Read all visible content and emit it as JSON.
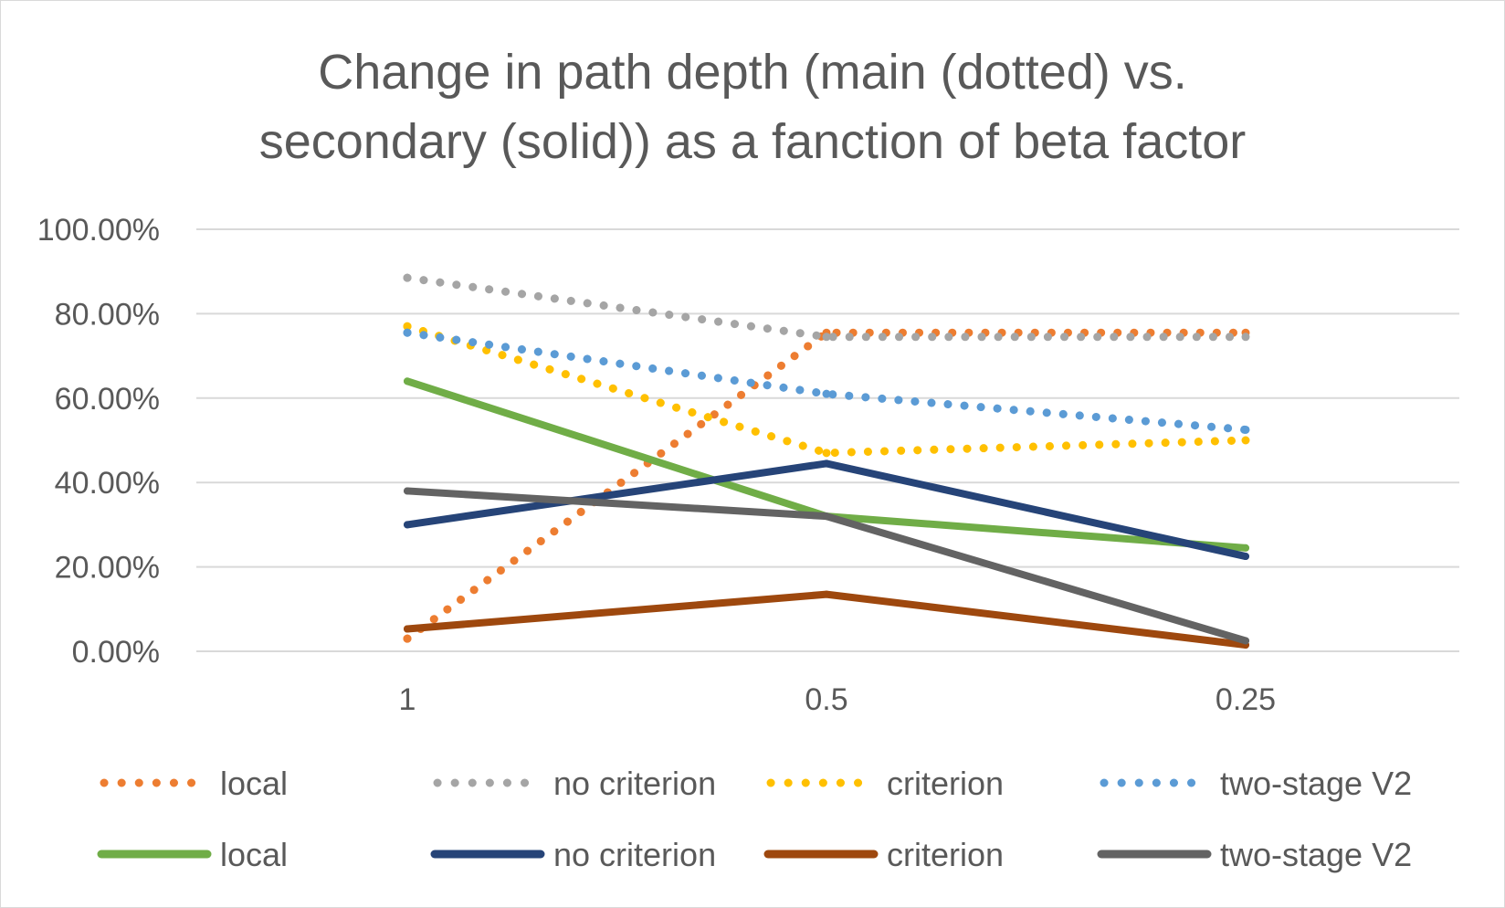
{
  "chart_data": {
    "type": "line",
    "title_lines": [
      "Change in path depth (main (dotted) vs.",
      "secondary (solid)) as a fanction of beta factor"
    ],
    "categories": [
      "1",
      "0.5",
      "0.25"
    ],
    "y_ticks": [
      "0.00%",
      "20.00%",
      "40.00%",
      "60.00%",
      "80.00%",
      "100.00%"
    ],
    "ylim": [
      0,
      100
    ],
    "grid": true,
    "legend_position": "bottom",
    "series": [
      {
        "name": "local",
        "style": "dotted",
        "color": "#ED7D31",
        "values": [
          3,
          75.5,
          75.5
        ]
      },
      {
        "name": "no criterion",
        "style": "dotted",
        "color": "#A5A5A5",
        "values": [
          88.5,
          74.5,
          74.5
        ]
      },
      {
        "name": "criterion",
        "style": "dotted",
        "color": "#FFC000",
        "values": [
          77,
          47,
          50
        ]
      },
      {
        "name": "two-stage V2",
        "style": "dotted",
        "color": "#5B9BD5",
        "values": [
          75.5,
          61,
          52.5
        ]
      },
      {
        "name": "local",
        "style": "solid",
        "color": "#70AD47",
        "values": [
          64,
          32,
          24.5
        ]
      },
      {
        "name": "no criterion",
        "style": "solid",
        "color": "#264478",
        "values": [
          30,
          44.5,
          22.5
        ]
      },
      {
        "name": "criterion",
        "style": "solid",
        "color": "#9E480E",
        "values": [
          5.3,
          13.5,
          1.5
        ]
      },
      {
        "name": "two-stage V2",
        "style": "solid",
        "color": "#636363",
        "values": [
          38,
          32,
          2.5
        ]
      }
    ]
  }
}
